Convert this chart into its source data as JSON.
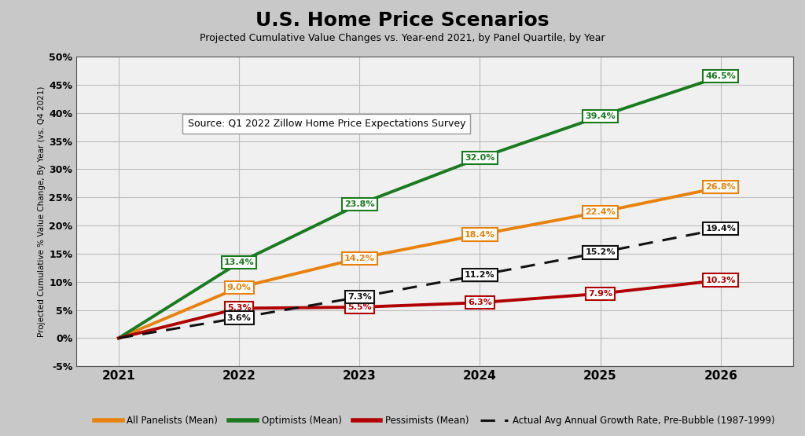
{
  "title": "U.S. Home Price Scenarios",
  "subtitle": "Projected Cumulative Value Changes vs. Year-end 2021, by Panel Quartile, by Year",
  "ylabel": "Projected Cumulative % Value Change, By Year (vs. Q4 2021)",
  "source_text": "Source: Q1 2022 Zillow Home Price Expectations Survey",
  "years": [
    2021,
    2022,
    2023,
    2024,
    2025,
    2026
  ],
  "all_panelists": [
    0.0,
    9.0,
    14.2,
    18.4,
    22.4,
    26.8
  ],
  "optimists": [
    0.0,
    13.4,
    23.8,
    32.0,
    39.4,
    46.5
  ],
  "pessimists": [
    0.0,
    5.3,
    5.5,
    6.3,
    7.9,
    10.3
  ],
  "actual_avg": [
    0.0,
    3.6,
    7.3,
    11.2,
    15.2,
    19.4
  ],
  "color_all": "#E8820C",
  "color_optimists": "#1A7A20",
  "color_pessimists": "#B00000",
  "color_actual": "#111111",
  "color_background": "#C8C8C8",
  "color_plot_bg": "#F0F0F0",
  "ylim": [
    -5,
    50
  ],
  "yticks": [
    -5,
    0,
    5,
    10,
    15,
    20,
    25,
    30,
    35,
    40,
    45,
    50
  ],
  "ytick_labels": [
    "-5%",
    "0%",
    "5%",
    "10%",
    "15%",
    "20%",
    "25%",
    "30%",
    "35%",
    "40%",
    "45%",
    "50%"
  ],
  "all_labels": [
    "9.0%",
    "14.2%",
    "18.4%",
    "22.4%",
    "26.8%"
  ],
  "opt_labels": [
    "13.4%",
    "23.8%",
    "32.0%",
    "39.4%",
    "46.5%"
  ],
  "pes_labels": [
    "5.3%",
    "5.5%",
    "6.3%",
    "7.9%",
    "10.3%"
  ],
  "act_labels": [
    "3.6%",
    "7.3%",
    "11.2%",
    "15.2%",
    "19.4%"
  ]
}
